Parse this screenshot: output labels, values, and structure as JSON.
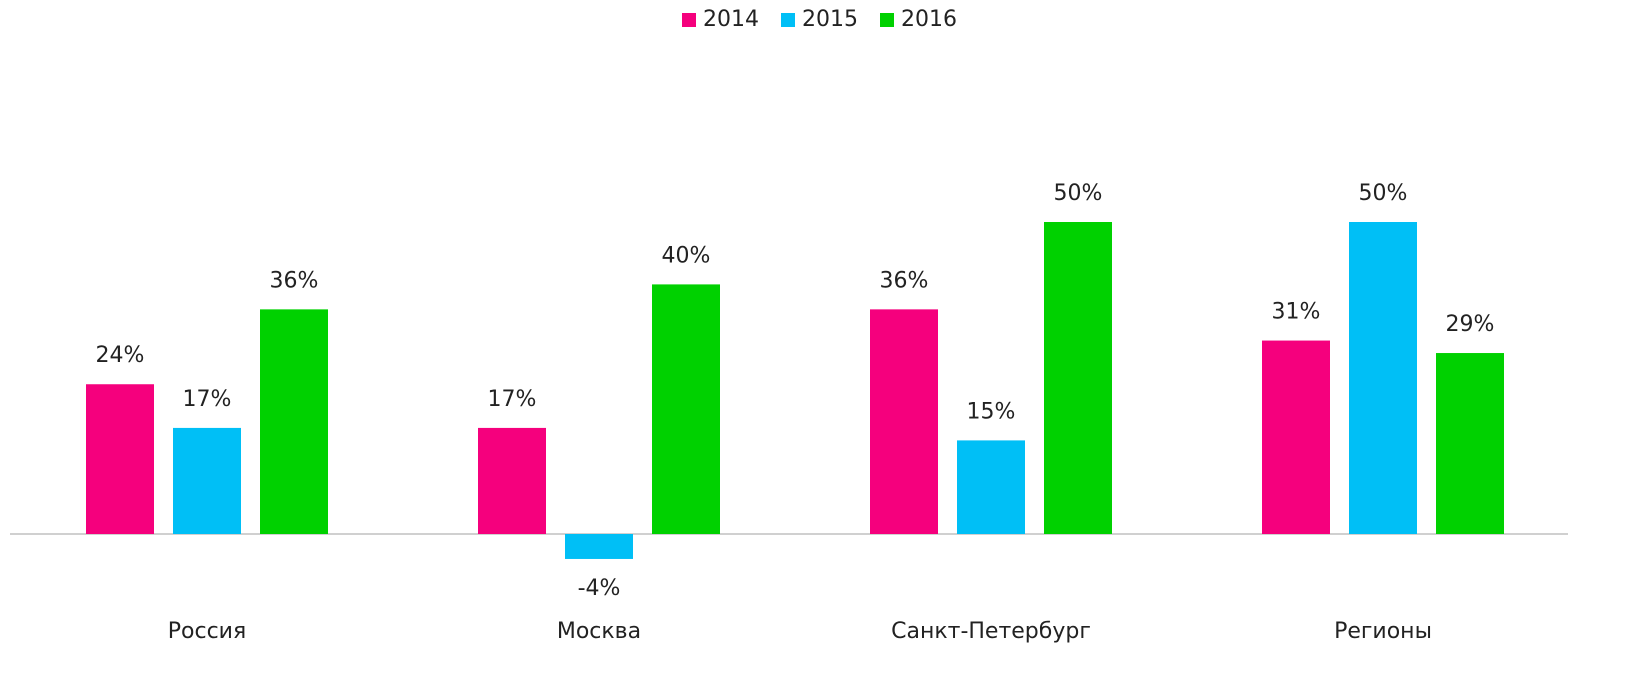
{
  "chart_data": {
    "type": "bar",
    "categories": [
      "Россия",
      "Москва",
      "Санкт-Петербург",
      "Регионы"
    ],
    "series": [
      {
        "name": "2014",
        "color": "#f5007d",
        "values": [
          24,
          17,
          36,
          31
        ],
        "value_labels": [
          "24%",
          "17%",
          "36%",
          "31%"
        ]
      },
      {
        "name": "2015",
        "color": "#00bff6",
        "values": [
          17,
          -4,
          15,
          50
        ],
        "value_labels": [
          "17%",
          "-4%",
          "15%",
          "50%"
        ]
      },
      {
        "name": "2016",
        "color": "#00d100",
        "values": [
          36,
          40,
          50,
          29
        ],
        "value_labels": [
          "36%",
          "40%",
          "50%",
          "29%"
        ]
      }
    ],
    "legend": "top"
  }
}
